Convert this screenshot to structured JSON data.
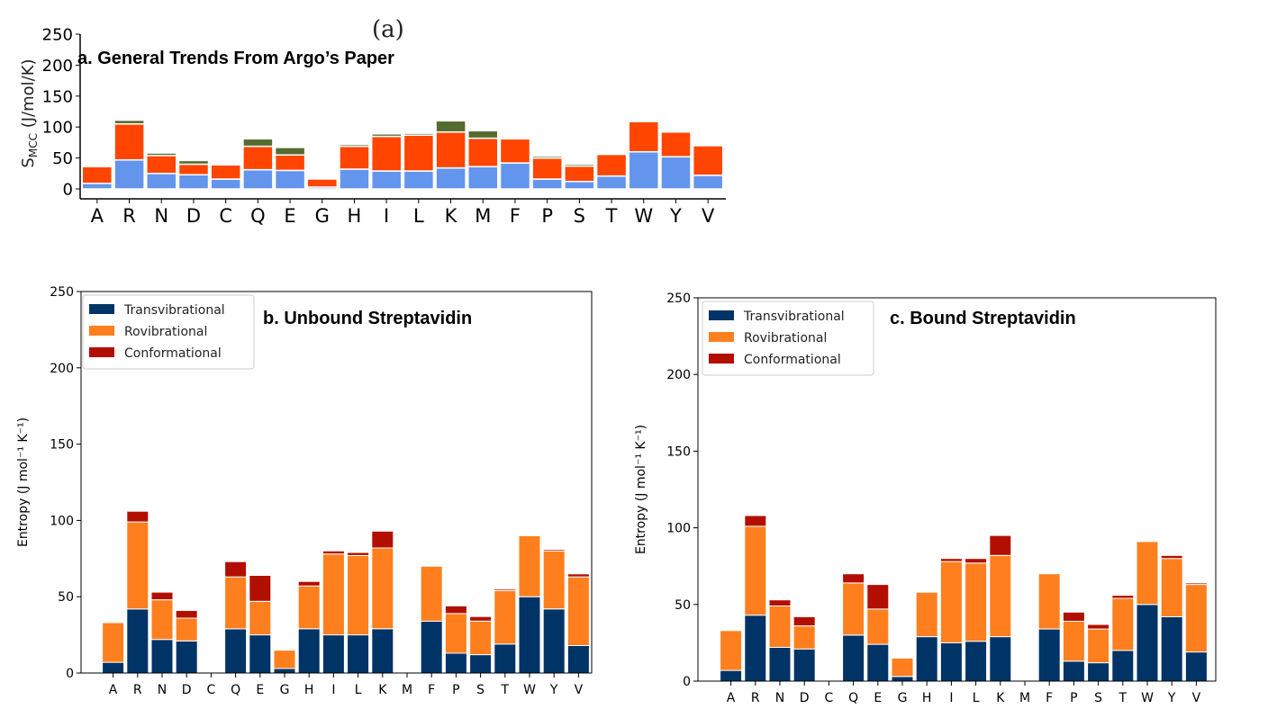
{
  "figure": {
    "subfig_label": "(a)",
    "annotations": {
      "a": "a. General Trends From Argo’s Paper",
      "b": "b. Unbound Streptavidin",
      "c": "c. Bound Streptavidin"
    }
  },
  "chart_data": [
    {
      "id": "a",
      "type": "bar",
      "stacked": true,
      "ylabel": "S",
      "ylabel_sub": "MCC",
      "ylabel_suffix": " (J/mol/K)",
      "ylim": [
        0,
        250
      ],
      "yticks": [
        0,
        50,
        100,
        150,
        200,
        250
      ],
      "grid": false,
      "legend": "none",
      "categories": [
        "A",
        "R",
        "N",
        "D",
        "C",
        "Q",
        "E",
        "G",
        "H",
        "I",
        "L",
        "K",
        "M",
        "F",
        "P",
        "S",
        "T",
        "W",
        "Y",
        "V"
      ],
      "series": [
        {
          "values": [
            9,
            47,
            25,
            23,
            16,
            31,
            30,
            3,
            32,
            29,
            29,
            34,
            36,
            42,
            16,
            12,
            21,
            60,
            52,
            22
          ],
          "color": "#6495ed"
        },
        {
          "values": [
            27,
            58,
            29,
            17,
            23,
            38,
            25,
            13,
            37,
            56,
            58,
            58,
            46,
            39,
            34,
            25,
            35,
            49,
            40,
            48
          ],
          "color": "#ff4500"
        },
        {
          "values": [
            0,
            6,
            4,
            6,
            1,
            12,
            12,
            0,
            3,
            4,
            3,
            18,
            12,
            2,
            3,
            3,
            2,
            1,
            1,
            1
          ],
          "color": "#556b2f"
        }
      ]
    },
    {
      "id": "b",
      "type": "bar",
      "stacked": true,
      "ylabel": "Entropy (J   mol⁻¹   K⁻¹)",
      "ylim": [
        0,
        250
      ],
      "yticks": [
        0,
        50,
        100,
        150,
        200,
        250
      ],
      "grid": false,
      "legend": "top-left",
      "categories": [
        "A",
        "R",
        "N",
        "D",
        "C",
        "Q",
        "E",
        "G",
        "H",
        "I",
        "L",
        "K",
        "M",
        "F",
        "P",
        "S",
        "T",
        "W",
        "Y",
        "V"
      ],
      "series": [
        {
          "name": "Transvibrational",
          "values": [
            7,
            42,
            22,
            21,
            0,
            29,
            25,
            3,
            29,
            25,
            25,
            29,
            0,
            34,
            13,
            12,
            19,
            50,
            42,
            18
          ],
          "color": "#003366"
        },
        {
          "name": "Rovibrational",
          "values": [
            26,
            57,
            26,
            15,
            0,
            34,
            22,
            12,
            28,
            53,
            52,
            53,
            0,
            36,
            26,
            22,
            35,
            40,
            38,
            45
          ],
          "color": "#ff7f1e"
        },
        {
          "name": "Conformational",
          "values": [
            0,
            7,
            5,
            5,
            0,
            10,
            17,
            0,
            3,
            2,
            2,
            11,
            0,
            0,
            5,
            3,
            1,
            0,
            1,
            2
          ],
          "color": "#b30f00"
        }
      ]
    },
    {
      "id": "c",
      "type": "bar",
      "stacked": true,
      "ylabel": "Entropy (J   mol⁻¹   K⁻¹)",
      "ylim": [
        0,
        250
      ],
      "yticks": [
        0,
        50,
        100,
        150,
        200,
        250
      ],
      "grid": false,
      "legend": "top-left",
      "categories": [
        "A",
        "R",
        "N",
        "D",
        "C",
        "Q",
        "E",
        "G",
        "H",
        "I",
        "L",
        "K",
        "M",
        "F",
        "P",
        "S",
        "T",
        "W",
        "Y",
        "V"
      ],
      "series": [
        {
          "name": "Transvibrational",
          "values": [
            7,
            43,
            22,
            21,
            0,
            30,
            24,
            3,
            29,
            25,
            26,
            29,
            0,
            34,
            13,
            12,
            20,
            50,
            42,
            19
          ],
          "color": "#003366"
        },
        {
          "name": "Rovibrational",
          "values": [
            26,
            58,
            27,
            15,
            0,
            34,
            23,
            12,
            29,
            53,
            51,
            53,
            0,
            36,
            26,
            22,
            34,
            41,
            38,
            44
          ],
          "color": "#ff7f1e"
        },
        {
          "name": "Conformational",
          "values": [
            0,
            7,
            4,
            6,
            0,
            6,
            16,
            0,
            0,
            2,
            3,
            13,
            0,
            0,
            6,
            3,
            2,
            0,
            2,
            1
          ],
          "color": "#b30f00"
        }
      ]
    }
  ]
}
